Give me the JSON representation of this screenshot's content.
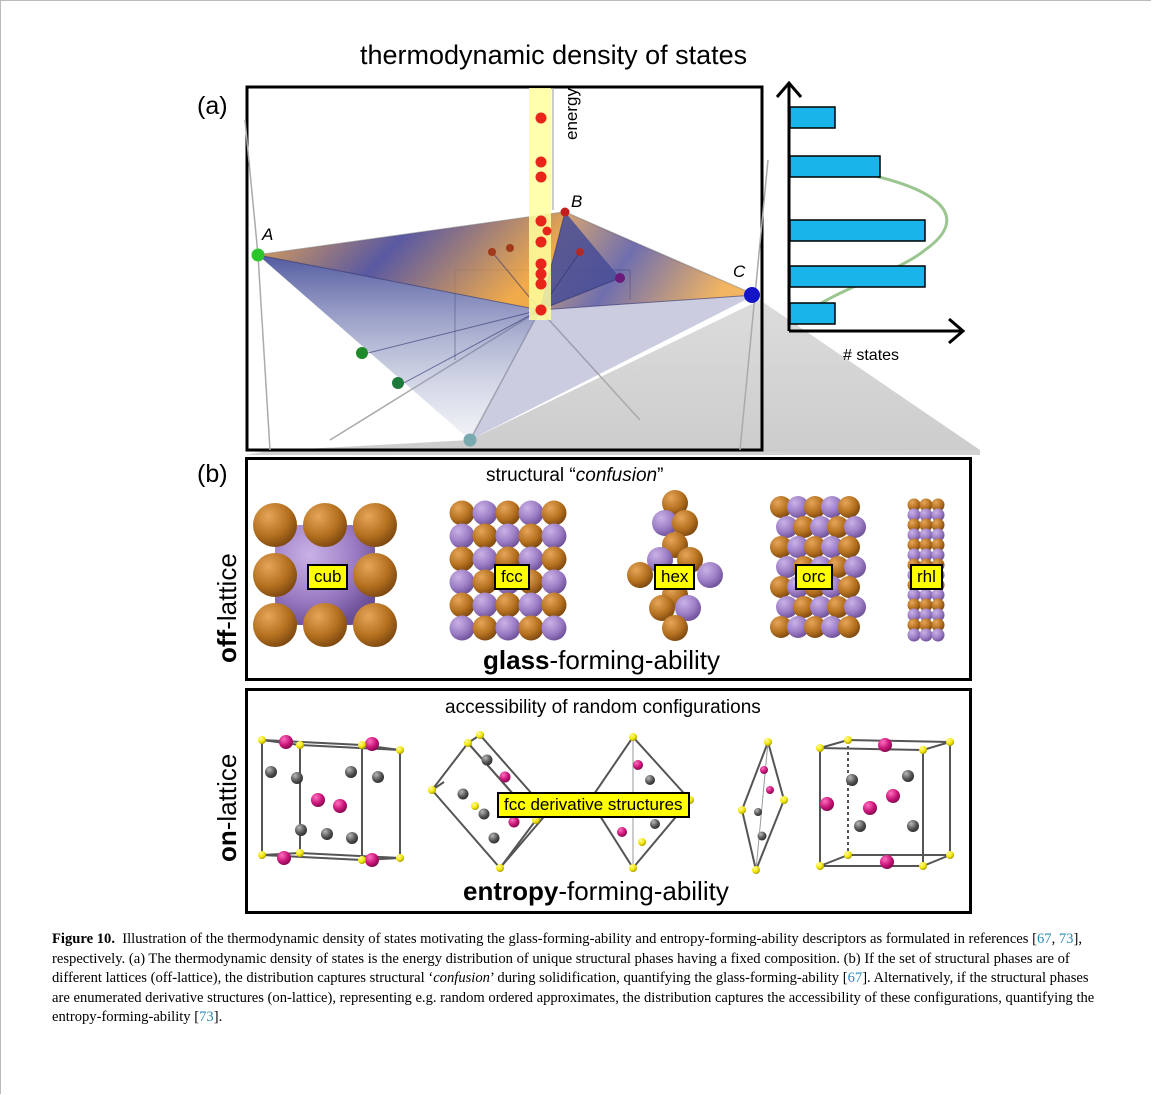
{
  "figure": {
    "title": "thermodynamic density of states",
    "panel_a": {
      "letter": "(a)",
      "energy_label": "energy",
      "vertex_labels": [
        "A",
        "B",
        "C"
      ],
      "histogram": {
        "xlabel": "# states",
        "bar_counts": [
          1,
          2,
          3,
          3,
          1
        ]
      }
    },
    "panel_b": {
      "letter": "(b)",
      "off_lattice": {
        "side_bold": "off",
        "side_rest": "-lattice",
        "heading_prefix": "structural “",
        "heading_italic": "confusion",
        "heading_suffix": "”",
        "structures": [
          "cub",
          "fcc",
          "hex",
          "orc",
          "rhl"
        ],
        "bottom_bold": "glass",
        "bottom_rest": "-forming-ability"
      },
      "on_lattice": {
        "side_bold": "on",
        "side_rest": "-lattice",
        "heading": "accessibility of random configurations",
        "tag": "fcc derivative structures",
        "bottom_bold": "entropy",
        "bottom_rest": "-forming-ability"
      }
    }
  },
  "caption": {
    "figure_number": "Figure 10.",
    "t1": "Illustration of the thermodynamic density of states motivating the glass-forming-ability and entropy-forming-ability descriptors as formulated in references [",
    "r1": "67",
    "t2": ", ",
    "r2": "73",
    "t3": "], respectively. (a) The thermodynamic density of states is the energy distribution of unique structural phases having a fixed composition. (b) If the set of structural phases are of different lattices (off-lattice), the distribution captures structural ‘",
    "t3_italic": "confusion",
    "t4": "’ during solidification, quantifying the glass-forming-ability [",
    "r3": "67",
    "t5": "]. Alternatively, if the structural phases are enumerated derivative structures (on-lattice), representing e.g. random ordered approximates, the distribution captures the accessibility of these configurations, quantifying the entropy-forming-ability [",
    "r4": "73",
    "t6": "]."
  },
  "colors": {
    "bar": "#19b4ea",
    "highlight": "#ffff00",
    "atom_orange": "#b5711f",
    "atom_purple": "#9b7cc4",
    "atom_magenta": "#c81478",
    "atom_gray": "#555555",
    "atom_yellow": "#f2e600",
    "energy_point": "#e8251a"
  }
}
